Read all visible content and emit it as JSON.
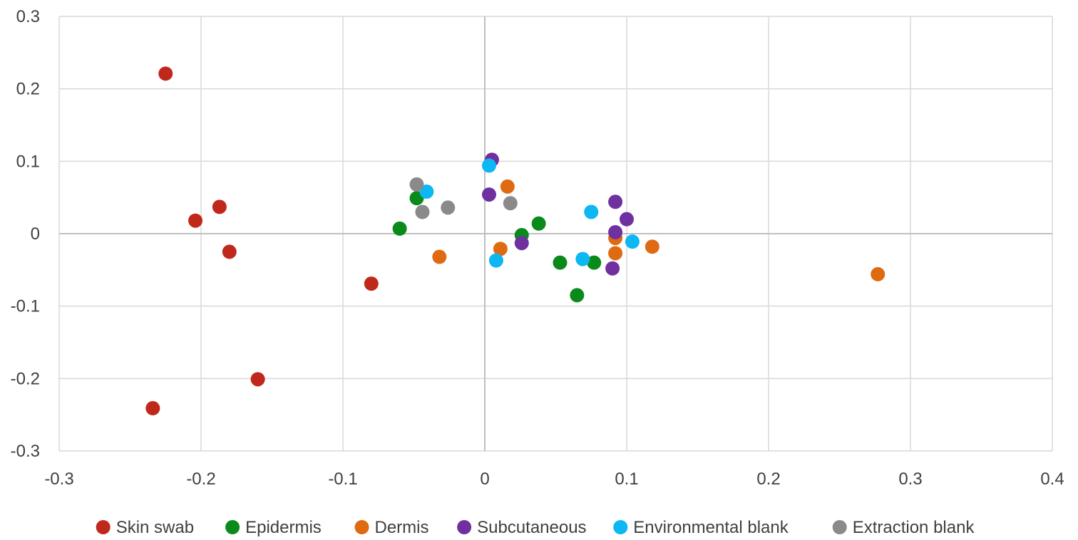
{
  "chart_data": {
    "type": "scatter",
    "title": "",
    "xlabel": "",
    "ylabel": "",
    "xlim": [
      -0.3,
      0.4
    ],
    "ylim": [
      -0.3,
      0.3
    ],
    "x_ticks": [
      -0.3,
      -0.2,
      -0.1,
      0,
      0.1,
      0.2,
      0.3,
      0.4
    ],
    "y_ticks": [
      -0.3,
      -0.2,
      -0.1,
      0,
      0.1,
      0.2,
      0.3
    ],
    "x_tick_labels": [
      "-0.3",
      "-0.2",
      "-0.1",
      "0",
      "0.1",
      "0.2",
      "0.3",
      "0.4"
    ],
    "y_tick_labels": [
      "-0.3",
      "-0.2",
      "-0.1",
      "0",
      "0.1",
      "0.2",
      "0.3"
    ],
    "grid": true,
    "legend_position": "bottom",
    "series": [
      {
        "name": "Skin swab",
        "color": "#c0281b",
        "points": [
          {
            "x": -0.225,
            "y": 0.221
          },
          {
            "x": -0.204,
            "y": 0.018
          },
          {
            "x": -0.187,
            "y": 0.037
          },
          {
            "x": -0.18,
            "y": -0.025
          },
          {
            "x": -0.16,
            "y": -0.201
          },
          {
            "x": -0.234,
            "y": -0.241
          },
          {
            "x": -0.08,
            "y": -0.069
          }
        ]
      },
      {
        "name": "Epidermis",
        "color": "#0a8a1a",
        "points": [
          {
            "x": -0.06,
            "y": 0.007
          },
          {
            "x": -0.048,
            "y": 0.049
          },
          {
            "x": 0.026,
            "y": -0.002
          },
          {
            "x": 0.038,
            "y": 0.014
          },
          {
            "x": 0.053,
            "y": -0.04
          },
          {
            "x": 0.077,
            "y": -0.04
          },
          {
            "x": 0.065,
            "y": -0.085
          }
        ]
      },
      {
        "name": "Dermis",
        "color": "#e06a12",
        "points": [
          {
            "x": -0.032,
            "y": -0.032
          },
          {
            "x": 0.016,
            "y": 0.065
          },
          {
            "x": 0.011,
            "y": -0.021
          },
          {
            "x": 0.092,
            "y": -0.006
          },
          {
            "x": 0.092,
            "y": -0.027
          },
          {
            "x": 0.118,
            "y": -0.018
          },
          {
            "x": 0.277,
            "y": -0.056
          }
        ]
      },
      {
        "name": "Subcutaneous",
        "color": "#7030a0",
        "points": [
          {
            "x": 0.005,
            "y": 0.102
          },
          {
            "x": 0.003,
            "y": 0.054
          },
          {
            "x": 0.026,
            "y": -0.013
          },
          {
            "x": 0.092,
            "y": 0.044
          },
          {
            "x": 0.1,
            "y": 0.02
          },
          {
            "x": 0.092,
            "y": 0.002
          },
          {
            "x": 0.09,
            "y": -0.048
          }
        ]
      },
      {
        "name": "Environmental blank",
        "color": "#0cb7f2",
        "points": [
          {
            "x": 0.003,
            "y": 0.094
          },
          {
            "x": -0.041,
            "y": 0.058
          },
          {
            "x": 0.075,
            "y": 0.03
          },
          {
            "x": 0.104,
            "y": -0.011
          },
          {
            "x": 0.069,
            "y": -0.035
          },
          {
            "x": 0.008,
            "y": -0.037
          }
        ]
      },
      {
        "name": "Extraction blank",
        "color": "#8a8a8a",
        "points": [
          {
            "x": -0.048,
            "y": 0.068
          },
          {
            "x": -0.044,
            "y": 0.03
          },
          {
            "x": -0.026,
            "y": 0.036
          },
          {
            "x": 0.018,
            "y": 0.042
          }
        ]
      }
    ]
  }
}
